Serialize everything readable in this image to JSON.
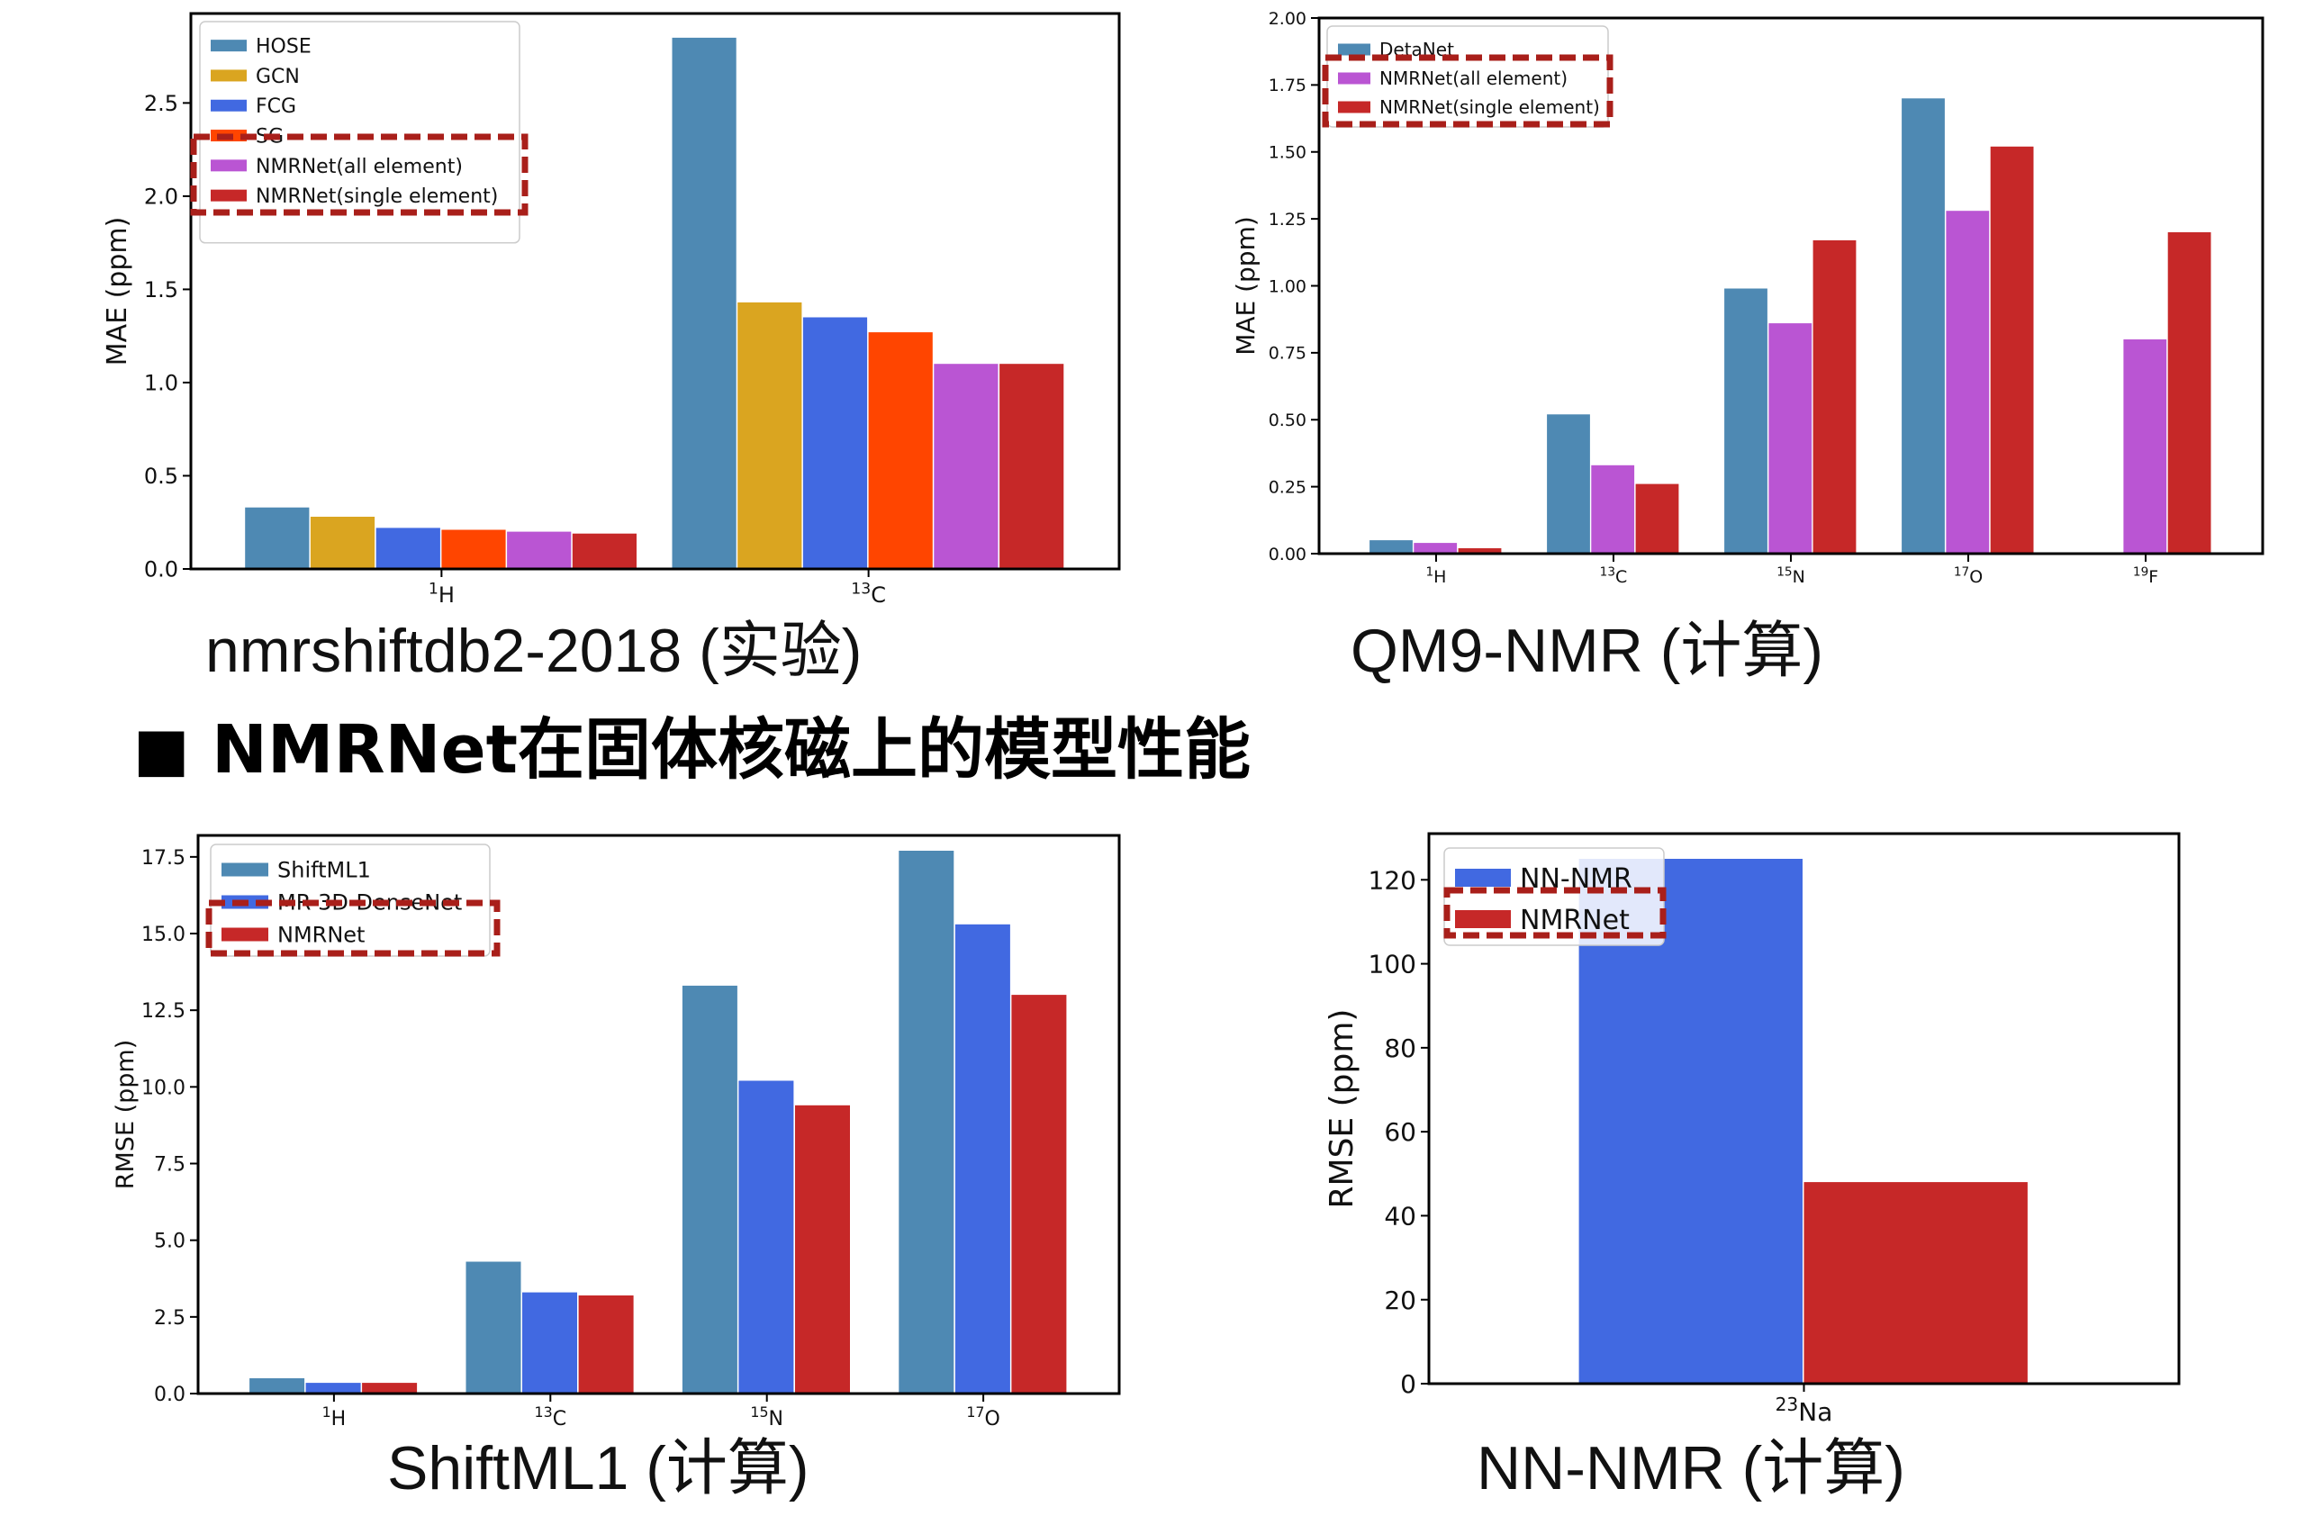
{
  "heading": {
    "bullet": "■",
    "text": "NMRNet在固体核磁上的模型性能"
  },
  "chart_data": [
    {
      "id": "nmrshiftdb",
      "type": "bar",
      "caption": "nmrshiftdb2-2018 (实验)",
      "ylabel": "MAE (ppm)",
      "ylim": [
        0,
        2.98
      ],
      "yticks": [
        "0.0",
        "0.5",
        "1.0",
        "1.5",
        "2.0",
        "2.5"
      ],
      "ytick_values": [
        0,
        0.5,
        1.0,
        1.5,
        2.0,
        2.5
      ],
      "categories": [
        {
          "sup": "1",
          "base": "H"
        },
        {
          "sup": "13",
          "base": "C"
        }
      ],
      "series": [
        {
          "name": "HOSE",
          "color": "#4e89b3",
          "values": [
            0.33,
            2.85
          ]
        },
        {
          "name": "GCN",
          "color": "#daa520",
          "values": [
            0.28,
            1.43
          ]
        },
        {
          "name": "FCG",
          "color": "#4169e1",
          "values": [
            0.22,
            1.35
          ]
        },
        {
          "name": "SG",
          "color": "#ff4500",
          "values": [
            0.21,
            1.27
          ]
        },
        {
          "name": "NMRNet(all element)",
          "color": "#ba55d3",
          "values": [
            0.2,
            1.1
          ]
        },
        {
          "name": "NMRNet(single element)",
          "color": "#c62828",
          "values": [
            0.19,
            1.1
          ]
        }
      ],
      "legend_placement": "top-left",
      "highlight_series": [
        4,
        5
      ]
    },
    {
      "id": "qm9",
      "type": "bar",
      "caption": "QM9-NMR (计算)",
      "ylabel": "MAE (ppm)",
      "ylim": [
        0,
        2.0
      ],
      "yticks": [
        "0.00",
        "0.25",
        "0.50",
        "0.75",
        "1.00",
        "1.25",
        "1.50",
        "1.75",
        "2.00"
      ],
      "ytick_values": [
        0,
        0.25,
        0.5,
        0.75,
        1.0,
        1.25,
        1.5,
        1.75,
        2.0
      ],
      "categories": [
        {
          "sup": "1",
          "base": "H"
        },
        {
          "sup": "13",
          "base": "C"
        },
        {
          "sup": "15",
          "base": "N"
        },
        {
          "sup": "17",
          "base": "O"
        },
        {
          "sup": "19",
          "base": "F"
        }
      ],
      "series": [
        {
          "name": "DetaNet",
          "color": "#4e89b3",
          "values": [
            0.05,
            0.52,
            0.99,
            1.7,
            null
          ]
        },
        {
          "name": "NMRNet(all element)",
          "color": "#ba55d3",
          "values": [
            0.04,
            0.33,
            0.86,
            1.28,
            0.8
          ]
        },
        {
          "name": "NMRNet(single element)",
          "color": "#c62828",
          "values": [
            0.02,
            0.26,
            1.17,
            1.52,
            1.2
          ]
        }
      ],
      "legend_placement": "top-left",
      "highlight_series": [
        1,
        2
      ]
    },
    {
      "id": "shiftml",
      "type": "bar",
      "caption": "ShiftML1 (计算)",
      "ylabel": "RMSE (ppm)",
      "ylim": [
        0,
        18.2
      ],
      "yticks": [
        "0.0",
        "2.5",
        "5.0",
        "7.5",
        "10.0",
        "12.5",
        "15.0",
        "17.5"
      ],
      "ytick_values": [
        0,
        2.5,
        5.0,
        7.5,
        10.0,
        12.5,
        15.0,
        17.5
      ],
      "categories": [
        {
          "sup": "1",
          "base": "H"
        },
        {
          "sup": "13",
          "base": "C"
        },
        {
          "sup": "15",
          "base": "N"
        },
        {
          "sup": "17",
          "base": "O"
        }
      ],
      "series": [
        {
          "name": "ShiftML1",
          "color": "#4e89b3",
          "values": [
            0.5,
            4.3,
            13.3,
            17.7
          ]
        },
        {
          "name": "MR-3D-DenseNet",
          "color": "#4169e1",
          "values": [
            0.35,
            3.3,
            10.2,
            15.3
          ]
        },
        {
          "name": "NMRNet",
          "color": "#c62828",
          "values": [
            0.35,
            3.2,
            9.4,
            13.0
          ]
        }
      ],
      "legend_placement": "top-left",
      "highlight_series": [
        2
      ]
    },
    {
      "id": "nnnmr",
      "type": "bar",
      "caption": "NN-NMR (计算)",
      "ylabel": "RMSE (ppm)",
      "ylim": [
        0,
        131
      ],
      "yticks": [
        "0",
        "20",
        "40",
        "60",
        "80",
        "100",
        "120"
      ],
      "ytick_values": [
        0,
        20,
        40,
        60,
        80,
        100,
        120
      ],
      "categories": [
        {
          "sup": "23",
          "base": "Na"
        }
      ],
      "series": [
        {
          "name": "NN-NMR",
          "color": "#4169e1",
          "values": [
            125
          ]
        },
        {
          "name": "NMRNet",
          "color": "#c62828",
          "values": [
            48
          ]
        }
      ],
      "legend_placement": "top-left",
      "highlight_series": [
        1
      ]
    }
  ]
}
